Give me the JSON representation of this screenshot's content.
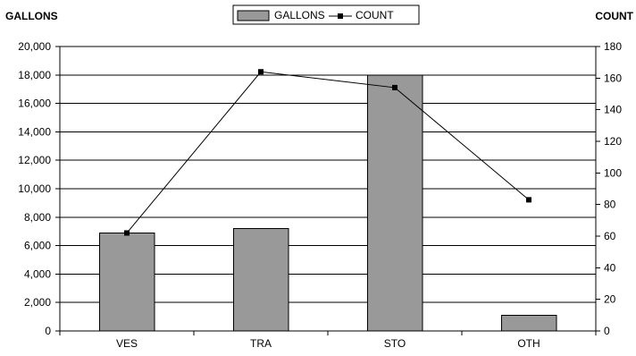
{
  "chart_data": {
    "type": "bar",
    "categories": [
      "VES",
      "TRA",
      "STO",
      "OTH"
    ],
    "series": [
      {
        "name": "GALLONS",
        "kind": "bar",
        "axis": "left",
        "color": "#999999",
        "values": [
          6900,
          7200,
          18000,
          1100
        ]
      },
      {
        "name": "COUNT",
        "kind": "line",
        "axis": "right",
        "color": "#000000",
        "values": [
          62,
          164,
          154,
          83
        ]
      }
    ],
    "y_left": {
      "label": "GALLONS",
      "range": [
        0,
        20000
      ],
      "ticks": [
        0,
        2000,
        4000,
        6000,
        8000,
        10000,
        12000,
        14000,
        16000,
        18000,
        20000
      ],
      "tick_labels": [
        "0",
        "2,000",
        "4,000",
        "6,000",
        "8,000",
        "10,000",
        "12,000",
        "14,000",
        "16,000",
        "18,000",
        "20,000"
      ]
    },
    "y_right": {
      "label": "COUNT",
      "range": [
        0,
        180
      ],
      "ticks": [
        0,
        20,
        40,
        60,
        80,
        100,
        120,
        140,
        160,
        180
      ],
      "tick_labels": [
        "0",
        "20",
        "40",
        "60",
        "80",
        "100",
        "120",
        "140",
        "160",
        "180"
      ]
    },
    "grid": "horizontal",
    "legend": {
      "position": "top-center",
      "items": [
        "GALLONS",
        "COUNT"
      ]
    }
  }
}
